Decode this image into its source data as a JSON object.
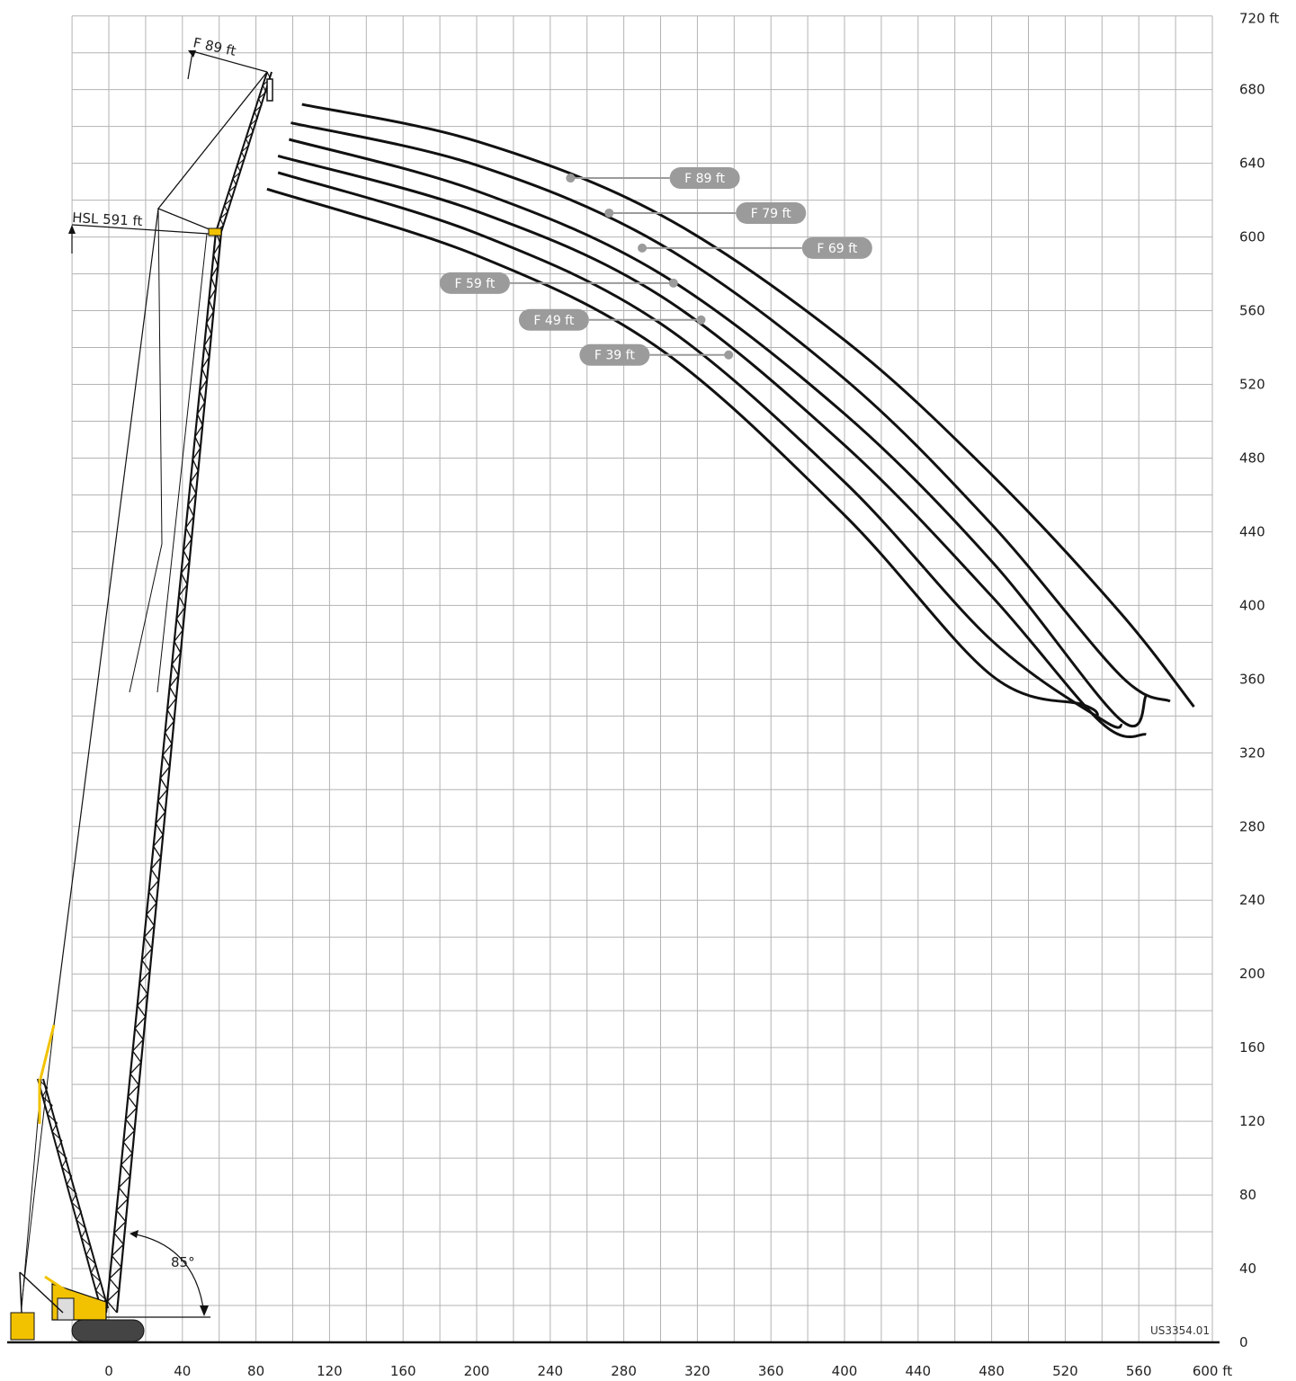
{
  "chart_data": {
    "type": "line",
    "title": "",
    "xlabel": "",
    "ylabel": "",
    "x_unit": "ft",
    "y_unit": "ft",
    "xlim": [
      -25,
      600
    ],
    "ylim": [
      0,
      720
    ],
    "x_ticks": [
      0,
      40,
      80,
      120,
      160,
      200,
      240,
      280,
      320,
      360,
      400,
      440,
      480,
      520,
      560,
      600
    ],
    "x_tick_labels": [
      "0",
      "40",
      "80",
      "120",
      "160",
      "200",
      "240",
      "280",
      "320",
      "360",
      "400",
      "440",
      "480",
      "520",
      "560",
      "600 ft"
    ],
    "y_ticks": [
      0,
      40,
      80,
      120,
      160,
      200,
      240,
      280,
      320,
      360,
      400,
      440,
      480,
      520,
      560,
      600,
      640,
      680,
      720
    ],
    "y_tick_labels": [
      "0",
      "40",
      "80",
      "120",
      "160",
      "200",
      "240",
      "280",
      "320",
      "360",
      "400",
      "440",
      "480",
      "520",
      "560",
      "600",
      "640",
      "680",
      "720 ft"
    ],
    "grid": true,
    "series": [
      {
        "name": "F 89 ft",
        "x": [
          105,
          200,
          300,
          400,
          480,
          550,
          590
        ],
        "y": [
          672,
          652,
          612,
          544,
          471,
          396,
          345
        ]
      },
      {
        "name": "F 79 ft",
        "x": [
          99,
          200,
          300,
          400,
          480,
          550,
          577
        ],
        "y": [
          662,
          639,
          596,
          523,
          444,
          362,
          348
        ]
      },
      {
        "name": "F 69 ft",
        "x": [
          98,
          200,
          300,
          400,
          480,
          550,
          564
        ],
        "y": [
          653,
          625,
          580,
          504,
          424,
          338,
          351
        ]
      },
      {
        "name": "F 59 ft",
        "x": [
          92,
          200,
          300,
          400,
          480,
          540,
          564
        ],
        "y": [
          644,
          614,
          568,
          487,
          405,
          336,
          330
        ]
      },
      {
        "name": "F 49 ft",
        "x": [
          92,
          200,
          300,
          400,
          480,
          540,
          551
        ],
        "y": [
          635,
          602,
          553,
          467,
          381,
          338,
          335
        ]
      },
      {
        "name": "F 39 ft",
        "x": [
          86,
          200,
          300,
          400,
          480,
          530,
          538
        ],
        "y": [
          626,
          590,
          539,
          449,
          362,
          346,
          340
        ]
      }
    ],
    "labels": [
      {
        "text": "F 89 ft",
        "at": [
          251,
          632
        ],
        "pill": [
          324,
          632
        ]
      },
      {
        "text": "F 79 ft",
        "at": [
          272,
          613
        ],
        "pill": [
          360,
          613
        ]
      },
      {
        "text": "F 69 ft",
        "at": [
          290,
          594
        ],
        "pill": [
          396,
          594
        ]
      },
      {
        "text": "F 59 ft",
        "at": [
          307,
          575
        ],
        "pill": [
          199,
          575
        ]
      },
      {
        "text": "F 49 ft",
        "at": [
          322,
          555
        ],
        "pill": [
          242,
          555
        ]
      },
      {
        "text": "F 39 ft",
        "at": [
          337,
          536
        ],
        "pill": [
          275,
          536
        ]
      }
    ],
    "annotations": {
      "jib_label": "F 89 ft",
      "hsl_label": "HSL 591 ft",
      "angle_label": "85°",
      "drawing_code": "US3354.01"
    },
    "colors": {
      "curve": "#111111",
      "grid": "#b3b3b3",
      "pill": "#9b9b9b",
      "crane_yellow": "#f2c200"
    }
  }
}
